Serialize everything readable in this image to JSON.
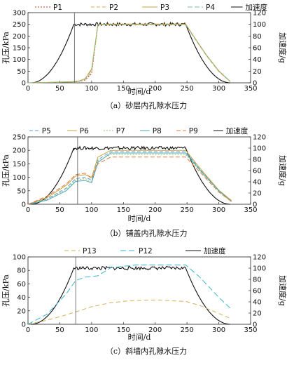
{
  "chart_data": [
    {
      "type": "line",
      "caption": "（a）砂层内孔隙水压力",
      "xlabel": "时间/d",
      "ylabel": "孔压/kPa",
      "y2label": "加速度/g",
      "xlim": [
        0,
        350
      ],
      "ylim": [
        0,
        300
      ],
      "y2lim": [
        0,
        120
      ],
      "xticks": [
        0,
        50,
        100,
        150,
        200,
        250,
        300,
        350
      ],
      "yticks": [
        0,
        50,
        100,
        150,
        200,
        250,
        300
      ],
      "y2ticks": [
        0,
        20,
        40,
        60,
        80,
        100,
        120
      ],
      "marker_x": 73,
      "accel": {
        "ramp_start": 5,
        "plateau_start": 72,
        "plateau_end": 248,
        "ramp_end": 318,
        "level": 100
      },
      "series": [
        {
          "name": "P1",
          "color": "#c0392b",
          "dash": "2,2",
          "x": [
            0,
            40,
            70,
            80,
            90,
            100,
            110,
            130,
            248,
            260,
            280,
            300,
            318
          ],
          "y": [
            0,
            2,
            4,
            6,
            12,
            40,
            250,
            250,
            250,
            200,
            120,
            50,
            5
          ]
        },
        {
          "name": "P2",
          "color": "#e0a15b",
          "dash": "5,3",
          "x": [
            0,
            40,
            70,
            80,
            90,
            100,
            110,
            130,
            248,
            260,
            280,
            300,
            318
          ],
          "y": [
            0,
            2,
            4,
            6,
            14,
            45,
            248,
            248,
            248,
            198,
            118,
            48,
            5
          ]
        },
        {
          "name": "P3",
          "color": "#c8a040",
          "dash": "",
          "x": [
            0,
            40,
            70,
            80,
            90,
            100,
            110,
            130,
            248,
            260,
            280,
            300,
            318
          ],
          "y": [
            0,
            2,
            5,
            8,
            18,
            60,
            250,
            251,
            251,
            201,
            121,
            51,
            6
          ]
        },
        {
          "name": "P4",
          "color": "#7fc08a",
          "dash": "7,3",
          "x": [
            0,
            40,
            70,
            80,
            90,
            100,
            110,
            130,
            248,
            260,
            280,
            300,
            318
          ],
          "y": [
            0,
            2,
            4,
            7,
            16,
            55,
            250,
            250,
            250,
            200,
            120,
            50,
            5
          ]
        }
      ],
      "accel_name": "加速度"
    },
    {
      "type": "line",
      "caption": "（b）铺盖内孔隙水压力",
      "xlabel": "时间/d",
      "ylabel": "孔压/kPa",
      "y2label": "加速度/g",
      "xlim": [
        0,
        350
      ],
      "ylim": [
        0,
        250
      ],
      "y2lim": [
        0,
        120
      ],
      "xticks": [
        0,
        50,
        100,
        150,
        200,
        250,
        300,
        350
      ],
      "yticks": [
        0,
        50,
        100,
        150,
        200,
        250
      ],
      "y2ticks": [
        0,
        20,
        40,
        60,
        80,
        100,
        120
      ],
      "marker_x": 78,
      "accel": {
        "ramp_start": 5,
        "plateau_start": 72,
        "plateau_end": 248,
        "ramp_end": 318,
        "level": 100
      },
      "series": [
        {
          "name": "P5",
          "color": "#5b9bd5",
          "dash": "5,3",
          "x": [
            0,
            30,
            60,
            75,
            90,
            100,
            110,
            130,
            248,
            270,
            300,
            320
          ],
          "y": [
            0,
            20,
            60,
            95,
            100,
            90,
            165,
            195,
            195,
            130,
            50,
            12
          ]
        },
        {
          "name": "P6",
          "color": "#c8a040",
          "dash": "",
          "x": [
            0,
            30,
            60,
            75,
            90,
            100,
            110,
            130,
            248,
            270,
            300,
            320
          ],
          "y": [
            0,
            25,
            70,
            105,
            110,
            100,
            175,
            200,
            200,
            135,
            52,
            14
          ]
        },
        {
          "name": "P7",
          "color": "#8fbf6a",
          "dash": "2,2",
          "x": [
            0,
            30,
            60,
            75,
            90,
            100,
            110,
            130,
            248,
            270,
            300,
            320
          ],
          "y": [
            0,
            18,
            55,
            90,
            95,
            85,
            160,
            185,
            185,
            125,
            48,
            10
          ]
        },
        {
          "name": "P8",
          "color": "#4aa8b8",
          "dash": "",
          "x": [
            0,
            30,
            60,
            75,
            90,
            100,
            110,
            130,
            248,
            270,
            300,
            320
          ],
          "y": [
            0,
            15,
            50,
            85,
            88,
            80,
            155,
            190,
            190,
            128,
            50,
            10
          ]
        },
        {
          "name": "P9",
          "color": "#e07b3c",
          "dash": "6,3",
          "x": [
            0,
            30,
            60,
            75,
            90,
            100,
            110,
            130,
            248,
            270,
            300,
            320
          ],
          "y": [
            0,
            30,
            75,
            110,
            115,
            95,
            150,
            175,
            175,
            120,
            45,
            10
          ]
        }
      ],
      "accel_name": "加速度"
    },
    {
      "type": "line",
      "caption": "（c）斜墙内孔隙水压力",
      "xlabel": "时间/d",
      "ylabel": "孔压/kPa",
      "y2label": "加速度/g",
      "xlim": [
        0,
        350
      ],
      "ylim": [
        0,
        100
      ],
      "y2lim": [
        0,
        120
      ],
      "xticks": [
        0,
        50,
        100,
        150,
        200,
        250,
        300,
        350
      ],
      "yticks": [
        0,
        20,
        40,
        60,
        80,
        100
      ],
      "y2ticks": [
        0,
        20,
        40,
        60,
        80,
        100,
        120
      ],
      "marker_x": 75,
      "accel": {
        "ramp_start": 5,
        "plateau_start": 72,
        "plateau_end": 248,
        "ramp_end": 318,
        "level": 100
      },
      "series": [
        {
          "name": "P13",
          "color": "#d4b05a",
          "dash": "6,4",
          "x": [
            0,
            30,
            60,
            80,
            100,
            130,
            160,
            200,
            248,
            270,
            300,
            320
          ],
          "y": [
            0,
            6,
            14,
            20,
            26,
            32,
            35,
            36,
            34,
            28,
            16,
            8
          ]
        },
        {
          "name": "P12",
          "color": "#39b4d6",
          "dash": "8,4",
          "x": [
            0,
            30,
            60,
            75,
            90,
            110,
            130,
            170,
            200,
            248,
            270,
            300,
            320
          ],
          "y": [
            0,
            15,
            45,
            65,
            70,
            72,
            84,
            88,
            88,
            88,
            70,
            40,
            22
          ]
        }
      ],
      "accel_name": "加速度"
    }
  ]
}
